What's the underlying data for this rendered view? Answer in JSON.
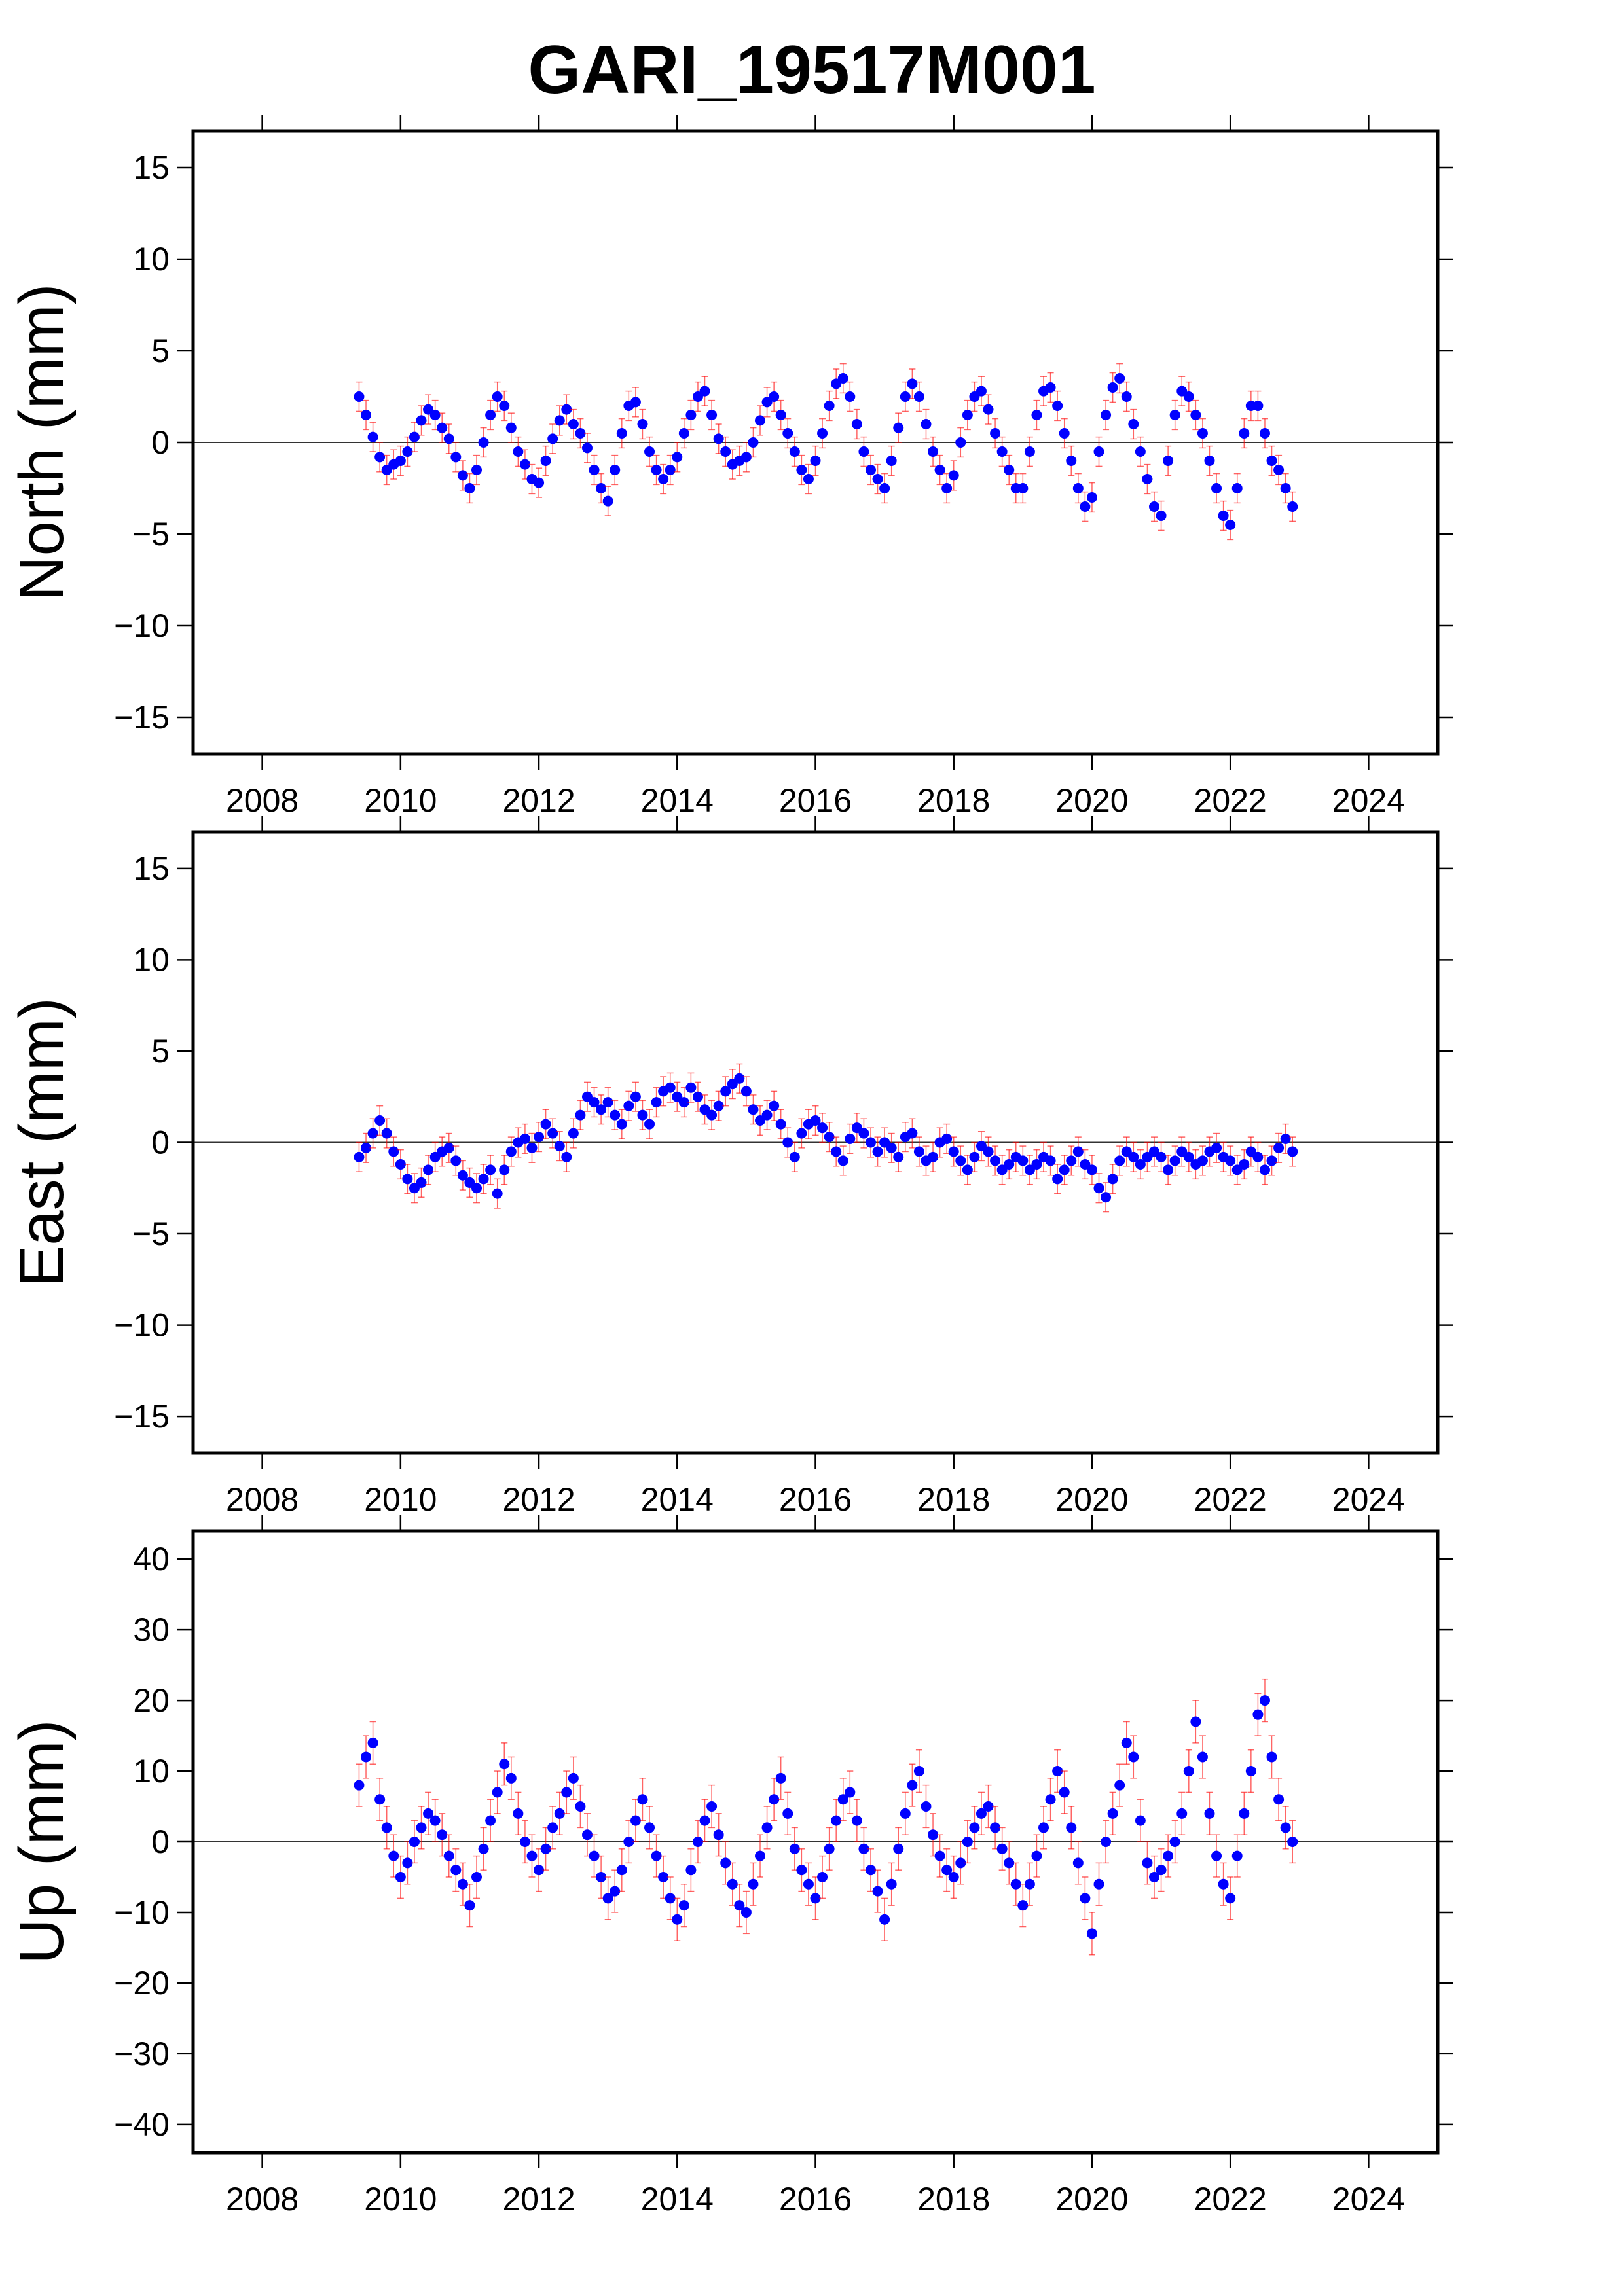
{
  "chart_data": [
    {
      "type": "scatter",
      "title": "GARI_19517M001",
      "ylabel": "North (mm)",
      "xlabel": "",
      "xlim": [
        2007,
        2025
      ],
      "ylim": [
        -17,
        17
      ],
      "xticks": [
        "2008",
        "2010",
        "2012",
        "2014",
        "2016",
        "2018",
        "2020",
        "2022",
        "2024"
      ],
      "yticks": [
        "15",
        "10",
        "5",
        "0",
        "−5",
        "−10",
        "−15"
      ],
      "ytick_values": [
        15,
        10,
        5,
        0,
        -5,
        -10,
        -15
      ],
      "x_start": 2009.4,
      "x_step": 0.1,
      "error_typical": 0.8,
      "values": [
        2.5,
        1.5,
        0.3,
        -0.8,
        -1.5,
        -1.2,
        -1.0,
        -0.5,
        0.3,
        1.2,
        1.8,
        1.5,
        0.8,
        0.2,
        -0.8,
        -1.8,
        -2.5,
        -1.5,
        0,
        1.5,
        2.5,
        2.0,
        0.8,
        -0.5,
        -1.2,
        -2.0,
        -2.2,
        -1.0,
        0.2,
        1.2,
        1.8,
        1.0,
        0.5,
        -0.3,
        -1.5,
        -2.5,
        -3.2,
        -1.5,
        0.5,
        2.0,
        2.2,
        1.0,
        -0.5,
        -1.5,
        -2.0,
        -1.5,
        -0.8,
        0.5,
        1.5,
        2.5,
        2.8,
        1.5,
        0.2,
        -0.5,
        -1.2,
        -1.0,
        -0.8,
        0,
        1.2,
        2.2,
        2.5,
        1.5,
        0.5,
        -0.5,
        -1.5,
        -2.0,
        -1.0,
        0.5,
        2.0,
        3.2,
        3.5,
        2.5,
        1.0,
        -0.5,
        -1.5,
        -2.0,
        -2.5,
        -1.0,
        0.8,
        2.5,
        3.2,
        2.5,
        1.0,
        -0.5,
        -1.5,
        -2.5,
        -1.8,
        0,
        1.5,
        2.5,
        2.8,
        1.8,
        0.5,
        -0.5,
        -1.5,
        -2.5,
        -2.5,
        -0.5,
        1.5,
        2.8,
        3.0,
        2.0,
        0.5,
        -1.0,
        -2.5,
        -3.5,
        -3.0,
        -0.5,
        1.5,
        3.0,
        3.5,
        2.5,
        1.0,
        -0.5,
        -2.0,
        -3.5,
        -4.0,
        -1.0,
        1.5,
        2.8,
        2.5,
        1.5,
        0.5,
        -1.0,
        -2.5,
        -4.0,
        -4.5,
        -2.5,
        0.5,
        2.0,
        2.0,
        0.5,
        -1.0,
        -1.5,
        -2.5,
        -3.5
      ]
    },
    {
      "type": "scatter",
      "ylabel": "East (mm)",
      "xlim": [
        2007,
        2025
      ],
      "ylim": [
        -17,
        17
      ],
      "xticks": [
        "2008",
        "2010",
        "2012",
        "2014",
        "2016",
        "2018",
        "2020",
        "2022",
        "2024"
      ],
      "yticks": [
        "15",
        "10",
        "5",
        "0",
        "−5",
        "−10",
        "−15"
      ],
      "ytick_values": [
        15,
        10,
        5,
        0,
        -5,
        -10,
        -15
      ],
      "x_start": 2009.4,
      "x_step": 0.1,
      "error_typical": 0.8,
      "values": [
        -0.8,
        -0.3,
        0.5,
        1.2,
        0.5,
        -0.5,
        -1.2,
        -2.0,
        -2.5,
        -2.2,
        -1.5,
        -0.8,
        -0.5,
        -0.3,
        -1.0,
        -1.8,
        -2.2,
        -2.5,
        -2.0,
        -1.5,
        -2.8,
        -1.5,
        -0.5,
        0,
        0.2,
        -0.3,
        0.3,
        1.0,
        0.5,
        -0.2,
        -0.8,
        0.5,
        1.5,
        2.5,
        2.2,
        1.8,
        2.2,
        1.5,
        1.0,
        2.0,
        2.5,
        1.5,
        1.0,
        2.2,
        2.8,
        3.0,
        2.5,
        2.2,
        3.0,
        2.5,
        1.8,
        1.5,
        2.0,
        2.8,
        3.2,
        3.5,
        2.8,
        1.8,
        1.2,
        1.5,
        2.0,
        1.0,
        0,
        -0.8,
        0.5,
        1.0,
        1.2,
        0.8,
        0.3,
        -0.5,
        -1.0,
        0.2,
        0.8,
        0.5,
        0,
        -0.5,
        0,
        -0.3,
        -0.8,
        0.3,
        0.5,
        -0.5,
        -1.0,
        -0.8,
        0,
        0.2,
        -0.5,
        -1.0,
        -1.5,
        -0.8,
        -0.2,
        -0.5,
        -1.0,
        -1.5,
        -1.2,
        -0.8,
        -1.0,
        -1.5,
        -1.2,
        -0.8,
        -1.0,
        -2.0,
        -1.5,
        -1.0,
        -0.5,
        -1.2,
        -1.5,
        -2.5,
        -3.0,
        -2.0,
        -1.0,
        -0.5,
        -0.8,
        -1.2,
        -0.8,
        -0.5,
        -0.8,
        -1.5,
        -1.0,
        -0.5,
        -0.8,
        -1.2,
        -1.0,
        -0.5,
        -0.3,
        -0.8,
        -1.0,
        -1.5,
        -1.2,
        -0.5,
        -0.8,
        -1.5,
        -1.0,
        -0.3,
        0.2,
        -0.5
      ]
    },
    {
      "type": "scatter",
      "ylabel": "Up (mm)",
      "xlim": [
        2007,
        2025
      ],
      "ylim": [
        -44,
        44
      ],
      "xticks": [
        "2008",
        "2010",
        "2012",
        "2014",
        "2016",
        "2018",
        "2020",
        "2022",
        "2024"
      ],
      "yticks": [
        "40",
        "30",
        "20",
        "10",
        "0",
        "−10",
        "−20",
        "−30",
        "−40"
      ],
      "ytick_values": [
        40,
        30,
        20,
        10,
        0,
        -10,
        -20,
        -30,
        -40
      ],
      "x_start": 2009.4,
      "x_step": 0.1,
      "error_typical": 3,
      "values": [
        8,
        12,
        14,
        6,
        2,
        -2,
        -5,
        -3,
        0,
        2,
        4,
        3,
        1,
        -2,
        -4,
        -6,
        -9,
        -5,
        -1,
        3,
        7,
        11,
        9,
        4,
        0,
        -2,
        -4,
        -1,
        2,
        4,
        7,
        9,
        5,
        1,
        -2,
        -5,
        -8,
        -7,
        -4,
        0,
        3,
        6,
        2,
        -2,
        -5,
        -8,
        -11,
        -9,
        -4,
        0,
        3,
        5,
        1,
        -3,
        -6,
        -9,
        -10,
        -6,
        -2,
        2,
        6,
        9,
        4,
        -1,
        -4,
        -6,
        -8,
        -5,
        -1,
        3,
        6,
        7,
        3,
        -1,
        -4,
        -7,
        -11,
        -6,
        -1,
        4,
        8,
        10,
        5,
        1,
        -2,
        -4,
        -5,
        -3,
        0,
        2,
        4,
        5,
        2,
        -1,
        -3,
        -6,
        -9,
        -6,
        -2,
        2,
        6,
        10,
        7,
        2,
        -3,
        -8,
        -13,
        -6,
        0,
        4,
        8,
        14,
        12,
        3,
        -3,
        -5,
        -4,
        -2,
        0,
        4,
        10,
        17,
        12,
        4,
        -2,
        -6,
        -8,
        -2,
        4,
        10,
        18,
        20,
        12,
        6,
        2,
        0
      ]
    }
  ],
  "colors": {
    "point": "#0000ff",
    "error_bar": "#ff0000",
    "frame": "#000000"
  }
}
